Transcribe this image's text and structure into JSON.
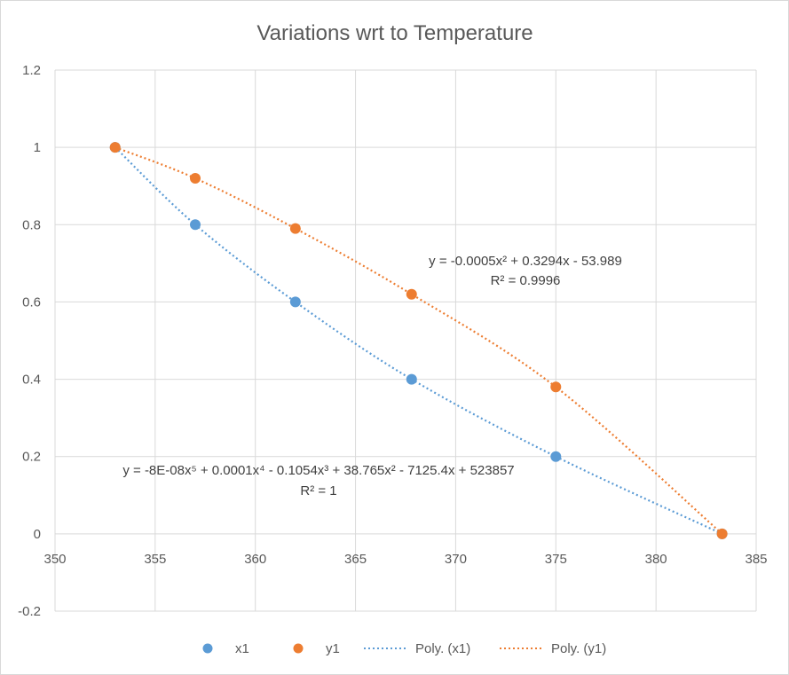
{
  "chart_data": {
    "type": "scatter",
    "title": "Variations wrt to Temperature",
    "xlabel": "",
    "ylabel": "",
    "xlim": [
      350,
      385
    ],
    "ylim": [
      -0.2,
      1.2
    ],
    "x_ticks": [
      "350",
      "355",
      "360",
      "365",
      "370",
      "375",
      "380",
      "385"
    ],
    "y_ticks": [
      "-0.2",
      "0",
      "0.2",
      "0.4",
      "0.6",
      "0.8",
      "1",
      "1.2"
    ],
    "grid": true,
    "legend_position": "bottom",
    "series": [
      {
        "name": "x1",
        "color": "#5b9bd5",
        "points": [
          [
            353,
            1.0
          ],
          [
            357,
            0.8
          ],
          [
            362,
            0.6
          ],
          [
            367.8,
            0.4
          ],
          [
            375,
            0.2
          ],
          [
            383.3,
            0.0
          ]
        ]
      },
      {
        "name": "y1",
        "color": "#ed7d31",
        "points": [
          [
            353,
            1.0
          ],
          [
            357,
            0.92
          ],
          [
            362,
            0.79
          ],
          [
            367.8,
            0.62
          ],
          [
            375,
            0.38
          ],
          [
            383.3,
            0.0
          ]
        ]
      }
    ],
    "trendlines": [
      {
        "name": "Poly. (x1)",
        "color": "#5b9bd5",
        "style": "dotted",
        "equation": "y = -8E-08x⁵ + 0.0001x⁴ - 0.1054x³ + 38.765x² - 7125.4x + 523857",
        "r2": "R² = 1"
      },
      {
        "name": "Poly. (y1)",
        "color": "#ed7d31",
        "style": "dotted",
        "equation": "y = -0.0005x² + 0.3294x - 53.989",
        "r2": "R² = 0.9996"
      }
    ]
  }
}
